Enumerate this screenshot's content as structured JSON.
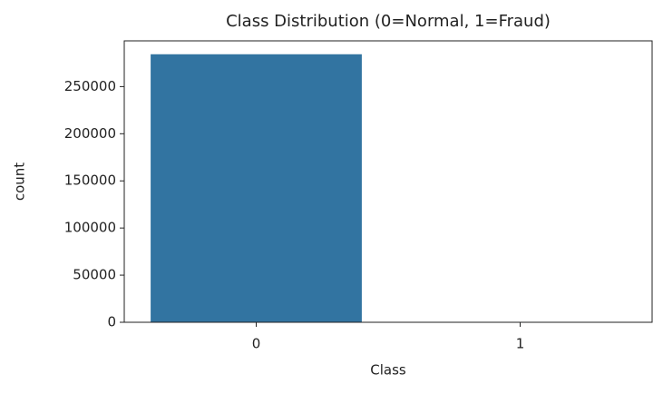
{
  "chart_data": {
    "type": "bar",
    "title": "Class Distribution (0=Normal, 1=Fraud)",
    "x_label": "Class",
    "y_label": "count",
    "categories": [
      "0",
      "1"
    ],
    "values": [
      284315,
      492
    ],
    "color": "#3274a1",
    "ylim": [
      0,
      298531
    ],
    "yticks": [
      0,
      50000,
      100000,
      150000,
      200000,
      250000
    ],
    "grid": false
  }
}
